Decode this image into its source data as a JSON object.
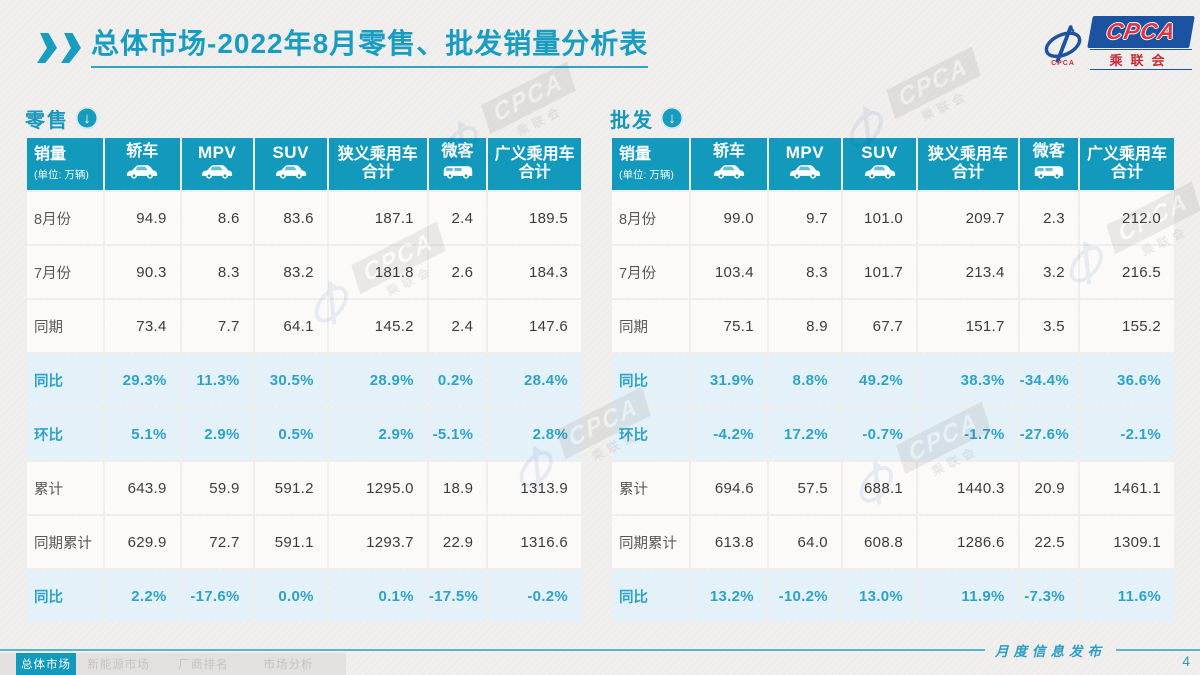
{
  "title": {
    "prefix": "总体市场",
    "rest": "-2022年8月零售、批发销量分析表"
  },
  "logo": {
    "cpca": "CPCA",
    "name_cn": "乘联会",
    "small_mark": "CPCA"
  },
  "colors": {
    "accent_teal": "#1299BB",
    "title_teal": "#189DC0",
    "percent_row_bg": "#E4F1F8",
    "percent_text": "#2EA3C6",
    "logo_blue": "#1C53A0",
    "logo_red": "#C42B35"
  },
  "columns": [
    {
      "label": "销量",
      "sub": "(单位: 万辆)"
    },
    {
      "label": "轿车",
      "icon": "sedan-car-icon"
    },
    {
      "label": "MPV",
      "icon": "mpv-car-icon",
      "latin": true
    },
    {
      "label": "SUV",
      "icon": "suv-car-icon",
      "latin": true
    },
    {
      "label": "狭义乘用车",
      "label2": "合计"
    },
    {
      "label": "微客",
      "icon": "microvan-icon"
    },
    {
      "label": "广义乘用车",
      "label2": "合计"
    }
  ],
  "tables": [
    {
      "section_label": "零售",
      "rows": [
        {
          "label": "8月份",
          "type": "data",
          "values": [
            "94.9",
            "8.6",
            "83.6",
            "187.1",
            "2.4",
            "189.5"
          ]
        },
        {
          "label": "7月份",
          "type": "data",
          "values": [
            "90.3",
            "8.3",
            "83.2",
            "181.8",
            "2.6",
            "184.3"
          ]
        },
        {
          "label": "同期",
          "type": "data",
          "values": [
            "73.4",
            "7.7",
            "64.1",
            "145.2",
            "2.4",
            "147.6"
          ]
        },
        {
          "label": "同比",
          "type": "percent",
          "values": [
            "29.3%",
            "11.3%",
            "30.5%",
            "28.9%",
            "0.2%",
            "28.4%"
          ]
        },
        {
          "label": "环比",
          "type": "percent",
          "values": [
            "5.1%",
            "2.9%",
            "0.5%",
            "2.9%",
            "-5.1%",
            "2.8%"
          ]
        },
        {
          "label": "累计",
          "type": "data",
          "values": [
            "643.9",
            "59.9",
            "591.2",
            "1295.0",
            "18.9",
            "1313.9"
          ]
        },
        {
          "label": "同期累计",
          "type": "data",
          "values": [
            "629.9",
            "72.7",
            "591.1",
            "1293.7",
            "22.9",
            "1316.6"
          ]
        },
        {
          "label": "同比",
          "type": "percent",
          "values": [
            "2.2%",
            "-17.6%",
            "0.0%",
            "0.1%",
            "-17.5%",
            "-0.2%"
          ]
        }
      ]
    },
    {
      "section_label": "批发",
      "rows": [
        {
          "label": "8月份",
          "type": "data",
          "values": [
            "99.0",
            "9.7",
            "101.0",
            "209.7",
            "2.3",
            "212.0"
          ]
        },
        {
          "label": "7月份",
          "type": "data",
          "values": [
            "103.4",
            "8.3",
            "101.7",
            "213.4",
            "3.2",
            "216.5"
          ]
        },
        {
          "label": "同期",
          "type": "data",
          "values": [
            "75.1",
            "8.9",
            "67.7",
            "151.7",
            "3.5",
            "155.2"
          ]
        },
        {
          "label": "同比",
          "type": "percent",
          "values": [
            "31.9%",
            "8.8%",
            "49.2%",
            "38.3%",
            "-34.4%",
            "36.6%"
          ]
        },
        {
          "label": "环比",
          "type": "percent",
          "values": [
            "-4.2%",
            "17.2%",
            "-0.7%",
            "-1.7%",
            "-27.6%",
            "-2.1%"
          ]
        },
        {
          "label": "累计",
          "type": "data",
          "values": [
            "694.6",
            "57.5",
            "688.1",
            "1440.3",
            "20.9",
            "1461.1"
          ]
        },
        {
          "label": "同期累计",
          "type": "data",
          "values": [
            "613.8",
            "64.0",
            "608.8",
            "1286.6",
            "22.5",
            "1309.1"
          ]
        },
        {
          "label": "同比",
          "type": "percent",
          "values": [
            "13.2%",
            "-10.2%",
            "13.0%",
            "11.9%",
            "-7.3%",
            "11.6%"
          ]
        }
      ]
    }
  ],
  "watermark": {
    "text_main": "CPCA",
    "text_sub": "乘联会"
  },
  "footer": {
    "note": "月度信息发布",
    "page_number": "4"
  },
  "bottom_nav": {
    "items": [
      {
        "label": "总体市场",
        "active": true
      },
      {
        "label": "新能源市场",
        "active": false
      },
      {
        "label": "厂商排名",
        "active": false
      },
      {
        "label": "市场分析",
        "active": false
      }
    ]
  }
}
